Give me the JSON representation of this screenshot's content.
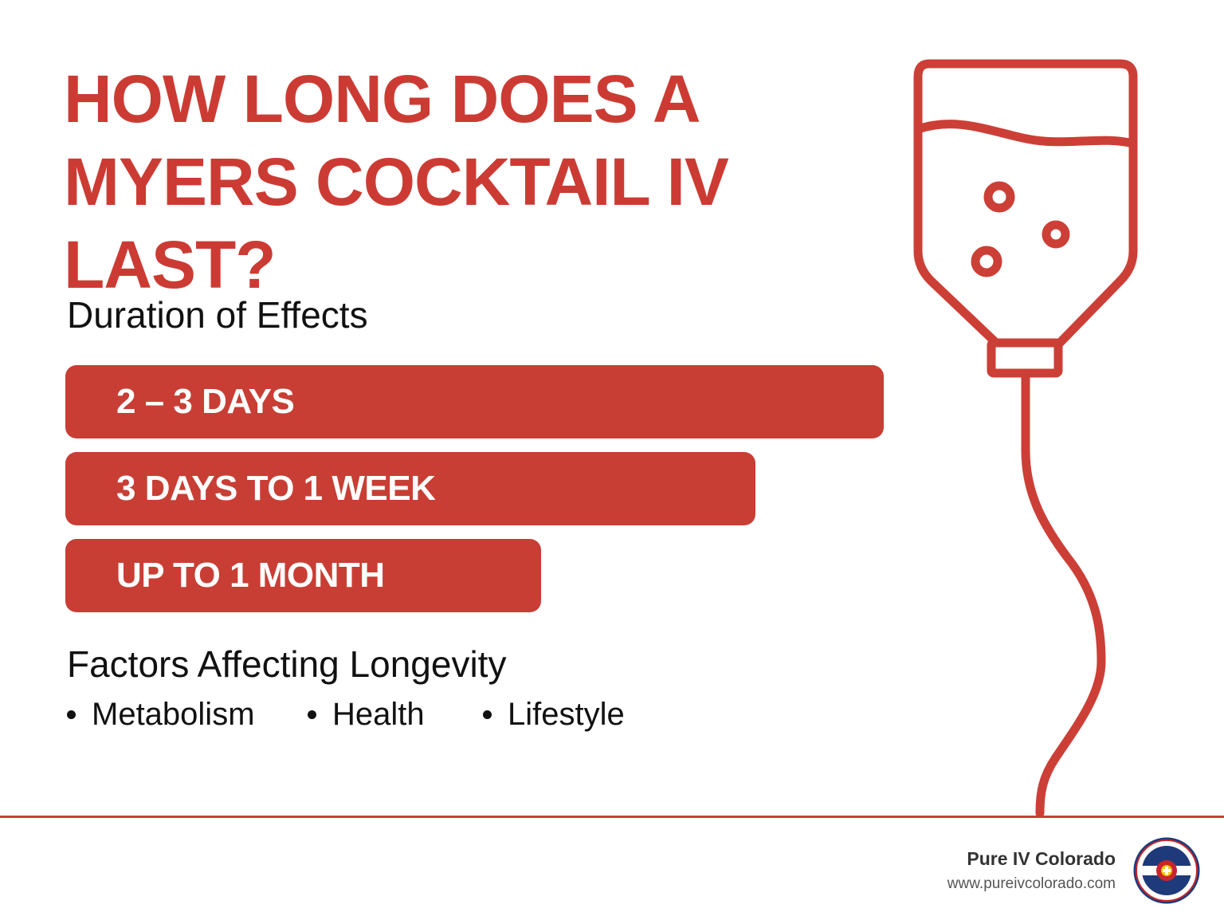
{
  "title": {
    "line1": "HOW LONG DOES A",
    "line2": "MYERS COCKTAIL IV",
    "line3": "LAST?"
  },
  "duration_section": {
    "heading": "Duration of Effects",
    "bars": [
      {
        "label": "2 – 3 DAYS"
      },
      {
        "label": "3 DAYS TO 1 WEEK"
      },
      {
        "label": "UP TO 1 MONTH"
      }
    ]
  },
  "factors_section": {
    "heading": "Factors Affecting Longevity",
    "items": [
      "Metabolism",
      "Health",
      "Lifestyle"
    ]
  },
  "footer": {
    "brand_name": "Pure IV Colorado",
    "url": "www.pureivcolorado.com",
    "logo_text": "PURE IV COLORADO"
  },
  "icons": {
    "illustration": "iv-bag-icon",
    "logo": "colorado-flag-logo-icon"
  },
  "colors": {
    "accent": "#c83e34",
    "text": "#111111",
    "background": "#ffffff"
  }
}
